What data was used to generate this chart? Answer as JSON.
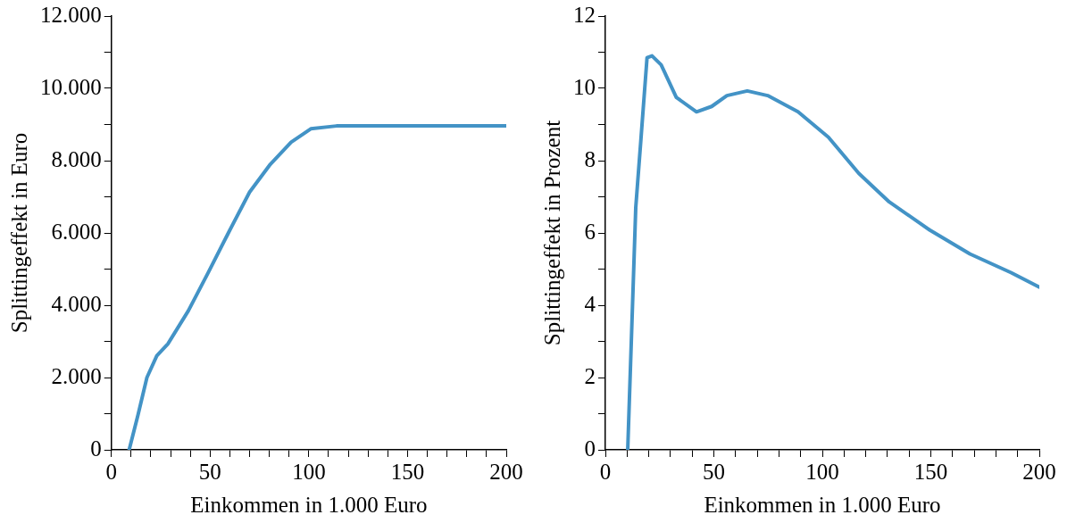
{
  "chart_data": [
    {
      "type": "line",
      "xlabel": "Einkommen in 1.000 Euro",
      "ylabel": "Splittingeffekt in Euro",
      "marker": "none",
      "line_style": "solid",
      "x": [
        9,
        13.5,
        18,
        23,
        28.6,
        39,
        49,
        60,
        70,
        80.5,
        91,
        101,
        114,
        200
      ],
      "series": [
        {
          "color": "#4393c6",
          "values": [
            0,
            970,
            2000,
            2600,
            2930,
            3850,
            4900,
            6080,
            7130,
            7900,
            8510,
            8880,
            8960,
            8960
          ]
        }
      ],
      "xlim": [
        0,
        200
      ],
      "xticks": [
        0,
        {
          "value": 10,
          "label": null
        },
        {
          "value": 20,
          "label": null
        },
        {
          "value": 30,
          "label": null
        },
        {
          "value": 40,
          "label": null
        },
        50,
        {
          "value": 60,
          "label": null
        },
        {
          "value": 70,
          "label": null
        },
        {
          "value": 80,
          "label": null
        },
        {
          "value": 90,
          "label": null
        },
        100,
        {
          "value": 110,
          "label": null
        },
        {
          "value": 120,
          "label": null
        },
        {
          "value": 130,
          "label": null
        },
        {
          "value": 140,
          "label": null
        },
        150,
        {
          "value": 160,
          "label": null
        },
        {
          "value": 170,
          "label": null
        },
        {
          "value": 180,
          "label": null
        },
        {
          "value": 190,
          "label": null
        },
        200
      ],
      "ylim": [
        0,
        12000
      ],
      "yticks": [
        0,
        {
          "value": 1000,
          "label": null
        },
        {
          "value": 2000,
          "label": "2.000"
        },
        {
          "value": 3000,
          "label": null
        },
        {
          "value": 4000,
          "label": "4.000"
        },
        {
          "value": 5000,
          "label": null
        },
        {
          "value": 6000,
          "label": "6.000"
        },
        {
          "value": 7000,
          "label": null
        },
        {
          "value": 8000,
          "label": "8.000"
        },
        {
          "value": 9000,
          "label": null
        },
        {
          "value": 10000,
          "label": "10.000"
        },
        {
          "value": 11000,
          "label": null
        },
        {
          "value": 12000,
          "label": "12.000"
        }
      ]
    },
    {
      "type": "line",
      "xlabel": "Einkommen in 1.000 Euro",
      "ylabel": "Splittingeffekt in Prozent",
      "marker": "none",
      "line_style": "solid",
      "x": [
        10.3,
        14,
        16.4,
        19.2,
        21.5,
        25.7,
        32.7,
        42,
        49,
        56,
        65.4,
        74.8,
        88.8,
        102.8,
        116.8,
        130.8,
        149.5,
        168,
        187,
        200
      ],
      "series": [
        {
          "color": "#4393c6",
          "values": [
            0,
            6.7,
            8.6,
            10.85,
            10.9,
            10.65,
            9.75,
            9.35,
            9.5,
            9.8,
            9.93,
            9.8,
            9.35,
            8.65,
            7.65,
            6.86,
            6.08,
            5.42,
            4.9,
            4.5
          ]
        }
      ],
      "xlim": [
        0,
        200
      ],
      "xticks": [
        0,
        {
          "value": 10,
          "label": null
        },
        {
          "value": 20,
          "label": null
        },
        {
          "value": 30,
          "label": null
        },
        {
          "value": 40,
          "label": null
        },
        50,
        {
          "value": 60,
          "label": null
        },
        {
          "value": 70,
          "label": null
        },
        {
          "value": 80,
          "label": null
        },
        {
          "value": 90,
          "label": null
        },
        100,
        {
          "value": 110,
          "label": null
        },
        {
          "value": 120,
          "label": null
        },
        {
          "value": 130,
          "label": null
        },
        {
          "value": 140,
          "label": null
        },
        150,
        {
          "value": 160,
          "label": null
        },
        {
          "value": 170,
          "label": null
        },
        {
          "value": 180,
          "label": null
        },
        {
          "value": 190,
          "label": null
        },
        200
      ],
      "ylim": [
        0,
        12
      ],
      "yticks": [
        0,
        {
          "value": 1,
          "label": null
        },
        2,
        {
          "value": 3,
          "label": null
        },
        4,
        {
          "value": 5,
          "label": null
        },
        6,
        {
          "value": 7,
          "label": null
        },
        8,
        {
          "value": 9,
          "label": null
        },
        10,
        {
          "value": 11,
          "label": null
        },
        12
      ]
    }
  ]
}
